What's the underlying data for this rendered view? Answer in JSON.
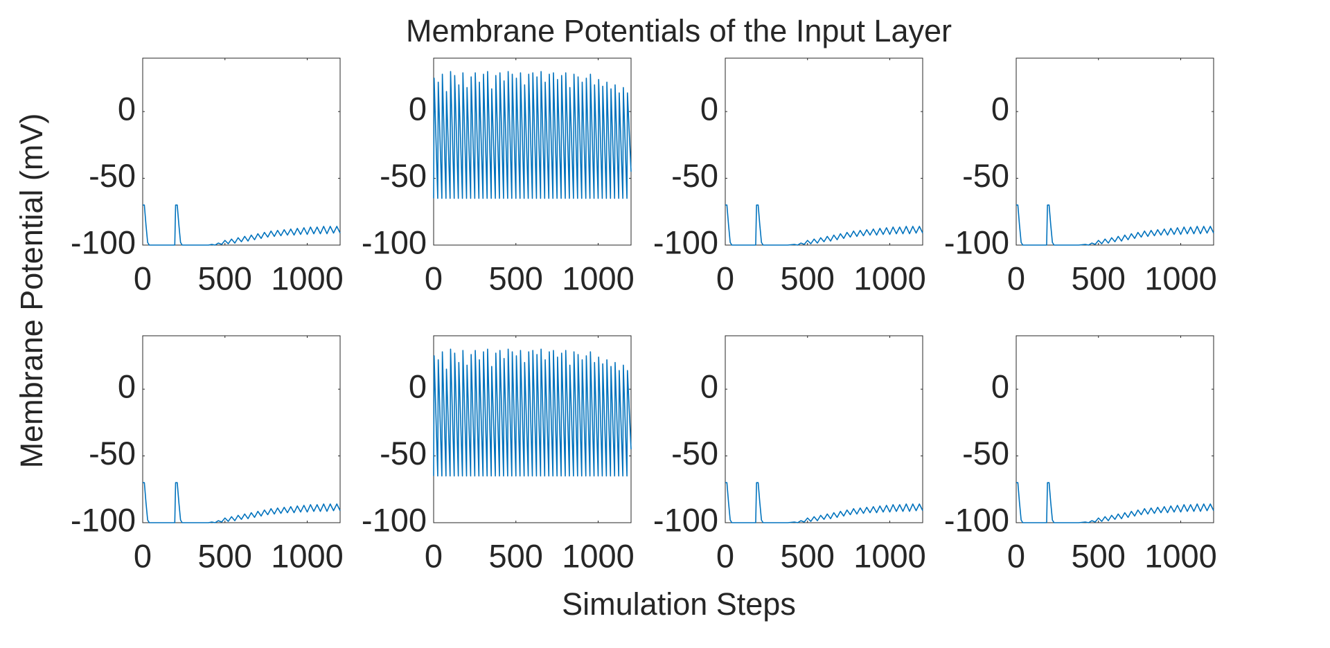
{
  "title": "Membrane Potentials of the Input Layer",
  "xlabel": "Simulation Steps",
  "ylabel": "Membrane Potential (mV)",
  "chart_data": [
    {
      "type": "line",
      "color": "#0072bd",
      "xlim": [
        0,
        1200
      ],
      "ylim": [
        -100,
        40
      ],
      "xticks": [
        0,
        500,
        1000
      ],
      "yticks": [
        -100,
        -50,
        0
      ],
      "x": [
        0,
        10,
        20,
        30,
        40,
        195,
        200,
        210,
        220,
        230,
        240,
        400,
        420,
        440,
        460,
        480,
        500,
        520,
        540,
        560,
        580,
        600,
        620,
        640,
        660,
        680,
        700,
        720,
        740,
        760,
        780,
        800,
        820,
        840,
        860,
        880,
        900,
        920,
        940,
        960,
        980,
        1000,
        1020,
        1040,
        1060,
        1080,
        1100,
        1120,
        1140,
        1160,
        1180,
        1200
      ],
      "values": [
        -70,
        -70,
        -85,
        -98,
        -100,
        -100,
        -70,
        -70,
        -85,
        -98,
        -100,
        -100,
        -99.5,
        -100,
        -98.5,
        -99.5,
        -96.5,
        -99,
        -95.5,
        -98.5,
        -94.5,
        -97.5,
        -93.5,
        -97,
        -92.5,
        -96,
        -91.5,
        -95,
        -90.5,
        -94,
        -89.5,
        -93.5,
        -89,
        -93,
        -88.5,
        -92.5,
        -88,
        -92.5,
        -87.5,
        -92,
        -87,
        -92,
        -86.5,
        -91.5,
        -86.5,
        -91.5,
        -86,
        -91.5,
        -86,
        -91,
        -86,
        -91
      ]
    },
    {
      "type": "line",
      "color": "#0072bd",
      "xlim": [
        0,
        1200
      ],
      "ylim": [
        -100,
        40
      ],
      "xticks": [
        0,
        500,
        1000
      ],
      "yticks": [
        -100,
        -50,
        0
      ],
      "x": [
        0,
        3,
        25,
        28,
        50,
        53,
        75,
        78,
        100,
        103,
        125,
        128,
        150,
        153,
        175,
        178,
        200,
        203,
        225,
        228,
        250,
        253,
        275,
        278,
        300,
        303,
        325,
        328,
        350,
        353,
        375,
        378,
        400,
        403,
        425,
        428,
        450,
        453,
        475,
        478,
        500,
        503,
        525,
        528,
        550,
        553,
        575,
        578,
        600,
        603,
        625,
        628,
        650,
        653,
        675,
        678,
        700,
        703,
        725,
        728,
        750,
        753,
        775,
        778,
        800,
        803,
        825,
        828,
        850,
        853,
        875,
        878,
        900,
        903,
        925,
        928,
        950,
        953,
        975,
        978,
        1000,
        1003,
        1025,
        1028,
        1050,
        1053,
        1075,
        1078,
        1100,
        1103,
        1125,
        1128,
        1150,
        1153,
        1175,
        1178,
        1200
      ],
      "values": [
        -65,
        25,
        -65,
        22,
        -65,
        28,
        -65,
        15,
        -65,
        30,
        -65,
        27,
        -65,
        20,
        -65,
        29,
        -65,
        18,
        -65,
        26,
        -65,
        29,
        -65,
        22,
        -65,
        28,
        -65,
        30,
        -65,
        17,
        -65,
        27,
        -65,
        29,
        -65,
        23,
        -65,
        30,
        -65,
        28,
        -65,
        25,
        -65,
        29,
        -65,
        20,
        -65,
        28,
        -65,
        29,
        -65,
        26,
        -65,
        30,
        -65,
        22,
        -65,
        28,
        -65,
        29,
        -65,
        24,
        -65,
        27,
        -65,
        29,
        -65,
        18,
        -65,
        28,
        -65,
        26,
        -65,
        22,
        -65,
        25,
        -65,
        28,
        -65,
        20,
        -65,
        24,
        -65,
        19,
        -65,
        22,
        -65,
        17,
        -65,
        20,
        -65,
        14,
        -65,
        18,
        -65,
        14,
        -45
      ]
    },
    {
      "type": "line",
      "color": "#0072bd",
      "xlim": [
        0,
        1200
      ],
      "ylim": [
        -100,
        40
      ],
      "xticks": [
        0,
        500,
        1000
      ],
      "yticks": [
        -100,
        -50,
        0
      ],
      "x": [
        0,
        10,
        20,
        30,
        40,
        185,
        190,
        200,
        210,
        220,
        230,
        380,
        420,
        440,
        460,
        480,
        500,
        520,
        540,
        560,
        580,
        600,
        620,
        640,
        660,
        680,
        700,
        720,
        740,
        760,
        780,
        800,
        820,
        840,
        860,
        880,
        900,
        920,
        940,
        960,
        980,
        1000,
        1020,
        1040,
        1060,
        1080,
        1100,
        1120,
        1140,
        1160,
        1180,
        1200
      ],
      "values": [
        -70,
        -70,
        -85,
        -98,
        -100,
        -100,
        -70,
        -70,
        -85,
        -98,
        -100,
        -100,
        -99.5,
        -100,
        -98.5,
        -99.5,
        -96.5,
        -99,
        -95.5,
        -98.5,
        -94.5,
        -97.5,
        -93.5,
        -97,
        -92.5,
        -96,
        -91.5,
        -95,
        -90.5,
        -94,
        -89.5,
        -93.5,
        -89,
        -93,
        -88.5,
        -92.5,
        -88,
        -92.5,
        -87.5,
        -92,
        -87,
        -92,
        -86.5,
        -91.5,
        -86.5,
        -91.5,
        -86,
        -91.5,
        -86,
        -91,
        -86,
        -91
      ]
    },
    {
      "type": "line",
      "color": "#0072bd",
      "xlim": [
        0,
        1200
      ],
      "ylim": [
        -100,
        40
      ],
      "xticks": [
        0,
        500,
        1000
      ],
      "yticks": [
        -100,
        -50,
        0
      ],
      "x": [
        0,
        10,
        20,
        30,
        40,
        185,
        190,
        200,
        210,
        220,
        230,
        380,
        420,
        440,
        460,
        480,
        500,
        520,
        540,
        560,
        580,
        600,
        620,
        640,
        660,
        680,
        700,
        720,
        740,
        760,
        780,
        800,
        820,
        840,
        860,
        880,
        900,
        920,
        940,
        960,
        980,
        1000,
        1020,
        1040,
        1060,
        1080,
        1100,
        1120,
        1140,
        1160,
        1180,
        1200
      ],
      "values": [
        -70,
        -70,
        -85,
        -98,
        -100,
        -100,
        -70,
        -70,
        -85,
        -98,
        -100,
        -100,
        -99.5,
        -100,
        -98.5,
        -99.5,
        -96.5,
        -99,
        -95.5,
        -98.5,
        -94.5,
        -97.5,
        -93.5,
        -97,
        -92.5,
        -96,
        -91.5,
        -95,
        -90.5,
        -94,
        -89.5,
        -93.5,
        -89,
        -93,
        -88.5,
        -92.5,
        -88,
        -92.5,
        -87.5,
        -92,
        -87,
        -92,
        -86.5,
        -91.5,
        -86.5,
        -91.5,
        -86,
        -91.5,
        -86,
        -91,
        -86,
        -91
      ]
    },
    {
      "type": "line",
      "color": "#0072bd",
      "xlim": [
        0,
        1200
      ],
      "ylim": [
        -100,
        40
      ],
      "xticks": [
        0,
        500,
        1000
      ],
      "yticks": [
        -100,
        -50,
        0
      ],
      "x": [
        0,
        10,
        20,
        30,
        40,
        195,
        200,
        210,
        220,
        230,
        240,
        400,
        420,
        440,
        460,
        480,
        500,
        520,
        540,
        560,
        580,
        600,
        620,
        640,
        660,
        680,
        700,
        720,
        740,
        760,
        780,
        800,
        820,
        840,
        860,
        880,
        900,
        920,
        940,
        960,
        980,
        1000,
        1020,
        1040,
        1060,
        1080,
        1100,
        1120,
        1140,
        1160,
        1180,
        1200
      ],
      "values": [
        -70,
        -70,
        -85,
        -98,
        -100,
        -100,
        -70,
        -70,
        -85,
        -98,
        -100,
        -100,
        -99.5,
        -100,
        -98.5,
        -99.5,
        -96.5,
        -99,
        -95.5,
        -98.5,
        -94.5,
        -97.5,
        -93.5,
        -97,
        -92.5,
        -96,
        -91.5,
        -95,
        -90.5,
        -94,
        -89.5,
        -93.5,
        -89,
        -93,
        -88.5,
        -92.5,
        -88,
        -92.5,
        -87.5,
        -92,
        -87,
        -92,
        -86.5,
        -91.5,
        -86.5,
        -91.5,
        -86,
        -91.5,
        -86,
        -91,
        -86,
        -91
      ]
    },
    {
      "type": "line",
      "color": "#0072bd",
      "xlim": [
        0,
        1200
      ],
      "ylim": [
        -100,
        40
      ],
      "xticks": [
        0,
        500,
        1000
      ],
      "yticks": [
        -100,
        -50,
        0
      ],
      "x": [
        0,
        3,
        25,
        28,
        50,
        53,
        75,
        78,
        100,
        103,
        125,
        128,
        150,
        153,
        175,
        178,
        200,
        203,
        225,
        228,
        250,
        253,
        275,
        278,
        300,
        303,
        325,
        328,
        350,
        353,
        375,
        378,
        400,
        403,
        425,
        428,
        450,
        453,
        475,
        478,
        500,
        503,
        525,
        528,
        550,
        553,
        575,
        578,
        600,
        603,
        625,
        628,
        650,
        653,
        675,
        678,
        700,
        703,
        725,
        728,
        750,
        753,
        775,
        778,
        800,
        803,
        825,
        828,
        850,
        853,
        875,
        878,
        900,
        903,
        925,
        928,
        950,
        953,
        975,
        978,
        1000,
        1003,
        1025,
        1028,
        1050,
        1053,
        1075,
        1078,
        1100,
        1103,
        1125,
        1128,
        1150,
        1153,
        1175,
        1178,
        1200
      ],
      "values": [
        -65,
        25,
        -65,
        22,
        -65,
        28,
        -65,
        15,
        -65,
        30,
        -65,
        27,
        -65,
        20,
        -65,
        29,
        -65,
        18,
        -65,
        26,
        -65,
        29,
        -65,
        22,
        -65,
        28,
        -65,
        30,
        -65,
        17,
        -65,
        27,
        -65,
        29,
        -65,
        23,
        -65,
        30,
        -65,
        28,
        -65,
        25,
        -65,
        29,
        -65,
        20,
        -65,
        28,
        -65,
        29,
        -65,
        26,
        -65,
        30,
        -65,
        22,
        -65,
        28,
        -65,
        29,
        -65,
        24,
        -65,
        27,
        -65,
        29,
        -65,
        18,
        -65,
        28,
        -65,
        26,
        -65,
        22,
        -65,
        25,
        -65,
        28,
        -65,
        20,
        -65,
        24,
        -65,
        19,
        -65,
        22,
        -65,
        17,
        -65,
        20,
        -65,
        14,
        -65,
        18,
        -65,
        14,
        -45
      ]
    },
    {
      "type": "line",
      "color": "#0072bd",
      "xlim": [
        0,
        1200
      ],
      "ylim": [
        -100,
        40
      ],
      "xticks": [
        0,
        500,
        1000
      ],
      "yticks": [
        -100,
        -50,
        0
      ],
      "x": [
        0,
        10,
        20,
        30,
        40,
        185,
        190,
        200,
        210,
        220,
        230,
        380,
        420,
        440,
        460,
        480,
        500,
        520,
        540,
        560,
        580,
        600,
        620,
        640,
        660,
        680,
        700,
        720,
        740,
        760,
        780,
        800,
        820,
        840,
        860,
        880,
        900,
        920,
        940,
        960,
        980,
        1000,
        1020,
        1040,
        1060,
        1080,
        1100,
        1120,
        1140,
        1160,
        1180,
        1200
      ],
      "values": [
        -70,
        -70,
        -85,
        -98,
        -100,
        -100,
        -70,
        -70,
        -85,
        -98,
        -100,
        -100,
        -99.5,
        -100,
        -98.5,
        -99.5,
        -96.5,
        -99,
        -95.5,
        -98.5,
        -94.5,
        -97.5,
        -93.5,
        -97,
        -92.5,
        -96,
        -91.5,
        -95,
        -90.5,
        -94,
        -89.5,
        -93.5,
        -89,
        -93,
        -88.5,
        -92.5,
        -88,
        -92.5,
        -87.5,
        -92,
        -87,
        -92,
        -86.5,
        -91.5,
        -86.5,
        -91.5,
        -86,
        -91.5,
        -86,
        -91,
        -86,
        -91
      ]
    },
    {
      "type": "line",
      "color": "#0072bd",
      "xlim": [
        0,
        1200
      ],
      "ylim": [
        -100,
        40
      ],
      "xticks": [
        0,
        500,
        1000
      ],
      "yticks": [
        -100,
        -50,
        0
      ],
      "x": [
        0,
        10,
        20,
        30,
        40,
        185,
        190,
        200,
        210,
        220,
        230,
        380,
        420,
        440,
        460,
        480,
        500,
        520,
        540,
        560,
        580,
        600,
        620,
        640,
        660,
        680,
        700,
        720,
        740,
        760,
        780,
        800,
        820,
        840,
        860,
        880,
        900,
        920,
        940,
        960,
        980,
        1000,
        1020,
        1040,
        1060,
        1080,
        1100,
        1120,
        1140,
        1160,
        1180,
        1200
      ],
      "values": [
        -70,
        -70,
        -85,
        -98,
        -100,
        -100,
        -70,
        -70,
        -85,
        -98,
        -100,
        -100,
        -99.5,
        -100,
        -98.5,
        -99.5,
        -96.5,
        -99,
        -95.5,
        -98.5,
        -94.5,
        -97.5,
        -93.5,
        -97,
        -92.5,
        -96,
        -91.5,
        -95,
        -90.5,
        -94,
        -89.5,
        -93.5,
        -89,
        -93,
        -88.5,
        -92.5,
        -88,
        -92.5,
        -87.5,
        -92,
        -87,
        -92,
        -86.5,
        -91.5,
        -86.5,
        -91.5,
        -86,
        -91.5,
        -86,
        -91,
        -86,
        -91
      ]
    }
  ]
}
